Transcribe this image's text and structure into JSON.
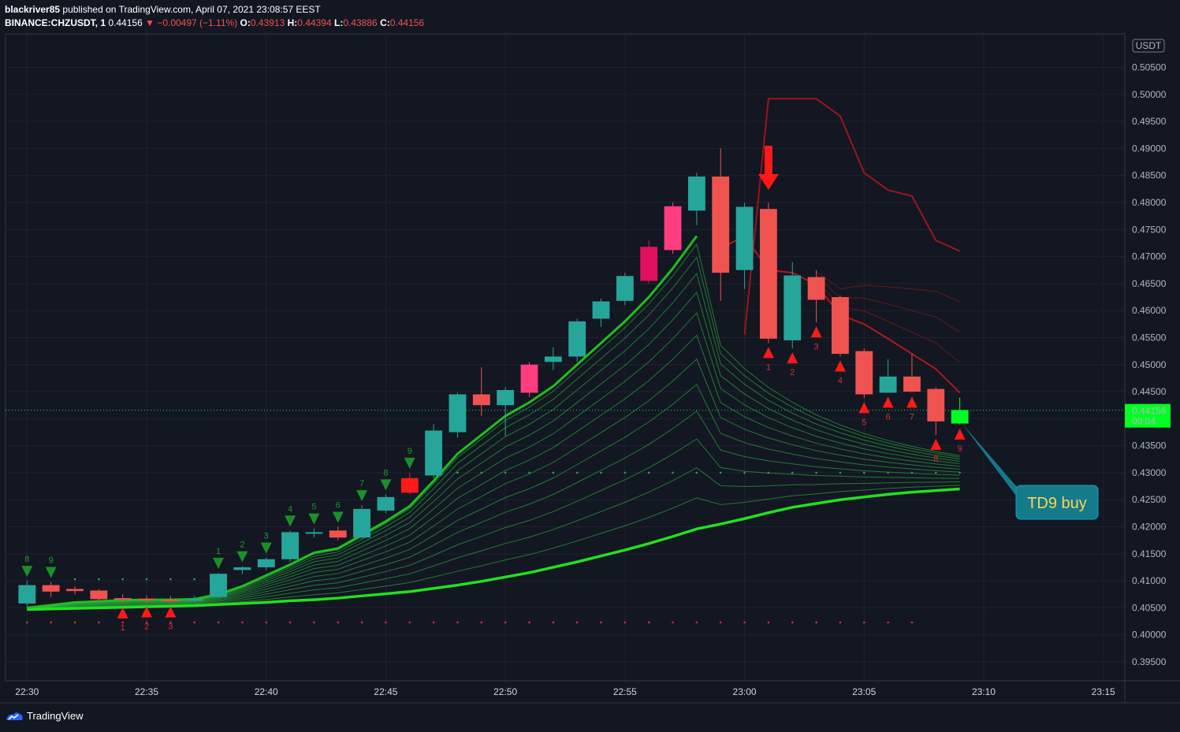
{
  "header": {
    "publisher": "blackriver85",
    "published_text": "published on TradingView.com, April 07, 2021 23:08:57 EEST",
    "symbol": "BINANCE:CHZUSDT, 1",
    "last": "0.44156",
    "change": "▼ −0.00497 (−1.11%)",
    "o_label": "O:",
    "o_value": "0.43913",
    "h_label": "H:",
    "h_value": "0.44394",
    "l_label": "L:",
    "l_value": "0.43886",
    "c_label": "C:",
    "c_value": "0.44156"
  },
  "footer": {
    "brand": "TradingView"
  },
  "chart_data": {
    "type": "candlestick",
    "title": "BINANCE:CHZUSDT, 1",
    "currency": "USDT",
    "y_ticks": [
      "0.50500",
      "0.50000",
      "0.49500",
      "0.49000",
      "0.48500",
      "0.48000",
      "0.47500",
      "0.47000",
      "0.46500",
      "0.46000",
      "0.45500",
      "0.45000",
      "0.44500",
      "0.44000",
      "0.43500",
      "0.43000",
      "0.42500",
      "0.42000",
      "0.41500",
      "0.41000",
      "0.40500",
      "0.40000",
      "0.39500"
    ],
    "x_ticks": [
      "22:30",
      "22:35",
      "22:40",
      "22:45",
      "22:50",
      "22:55",
      "23:00",
      "23:05",
      "23:10",
      "23:15"
    ],
    "ylim": [
      0.3915,
      0.5112
    ],
    "xlim": [
      -0.9,
      45.9
    ],
    "price_tag": {
      "value": "0.44156",
      "countdown": "00:04",
      "price": 0.44156
    },
    "annotation": {
      "text": "TD9 buy",
      "at_index": 38
    },
    "signal_arrow_index": 31,
    "candles": [
      {
        "i": 0,
        "o": 0.4058,
        "h": 0.41,
        "l": 0.405,
        "c": 0.4092
      },
      {
        "i": 1,
        "o": 0.4092,
        "h": 0.4098,
        "l": 0.407,
        "c": 0.408
      },
      {
        "i": 2,
        "o": 0.4085,
        "h": 0.409,
        "l": 0.4075,
        "c": 0.4081
      },
      {
        "i": 3,
        "o": 0.4082,
        "h": 0.4085,
        "l": 0.4062,
        "c": 0.4066
      },
      {
        "i": 4,
        "o": 0.4068,
        "h": 0.4075,
        "l": 0.4058,
        "c": 0.4066
      },
      {
        "i": 5,
        "o": 0.4067,
        "h": 0.4073,
        "l": 0.406,
        "c": 0.4065
      },
      {
        "i": 6,
        "o": 0.4065,
        "h": 0.4072,
        "l": 0.406,
        "c": 0.4062
      },
      {
        "i": 7,
        "o": 0.4063,
        "h": 0.4072,
        "l": 0.406,
        "c": 0.4066
      },
      {
        "i": 8,
        "o": 0.407,
        "h": 0.4115,
        "l": 0.4068,
        "c": 0.4113
      },
      {
        "i": 9,
        "o": 0.412,
        "h": 0.4127,
        "l": 0.4112,
        "c": 0.4125
      },
      {
        "i": 10,
        "o": 0.4125,
        "h": 0.4143,
        "l": 0.412,
        "c": 0.414
      },
      {
        "i": 11,
        "o": 0.414,
        "h": 0.4193,
        "l": 0.4135,
        "c": 0.419
      },
      {
        "i": 12,
        "o": 0.419,
        "h": 0.4197,
        "l": 0.418,
        "c": 0.419
      },
      {
        "i": 13,
        "o": 0.4193,
        "h": 0.42,
        "l": 0.4175,
        "c": 0.418
      },
      {
        "i": 14,
        "o": 0.418,
        "h": 0.424,
        "l": 0.4178,
        "c": 0.4233
      },
      {
        "i": 15,
        "o": 0.423,
        "h": 0.426,
        "l": 0.4225,
        "c": 0.4255
      },
      {
        "i": 16,
        "o": 0.429,
        "h": 0.43,
        "l": 0.426,
        "c": 0.4263
      },
      {
        "i": 17,
        "o": 0.4295,
        "h": 0.439,
        "l": 0.429,
        "c": 0.4378
      },
      {
        "i": 18,
        "o": 0.4375,
        "h": 0.4448,
        "l": 0.4365,
        "c": 0.4445
      },
      {
        "i": 19,
        "o": 0.4445,
        "h": 0.4495,
        "l": 0.4405,
        "c": 0.4425
      },
      {
        "i": 20,
        "o": 0.4425,
        "h": 0.4458,
        "l": 0.4368,
        "c": 0.4453
      },
      {
        "i": 21,
        "o": 0.4448,
        "h": 0.4505,
        "l": 0.444,
        "c": 0.45
      },
      {
        "i": 22,
        "o": 0.4505,
        "h": 0.4532,
        "l": 0.449,
        "c": 0.4515
      },
      {
        "i": 23,
        "o": 0.4515,
        "h": 0.4585,
        "l": 0.4505,
        "c": 0.458
      },
      {
        "i": 24,
        "o": 0.4585,
        "h": 0.4622,
        "l": 0.457,
        "c": 0.4617
      },
      {
        "i": 25,
        "o": 0.4618,
        "h": 0.467,
        "l": 0.461,
        "c": 0.4664
      },
      {
        "i": 26,
        "o": 0.4655,
        "h": 0.473,
        "l": 0.465,
        "c": 0.4718
      },
      {
        "i": 27,
        "o": 0.4712,
        "h": 0.48,
        "l": 0.4705,
        "c": 0.4793
      },
      {
        "i": 28,
        "o": 0.4785,
        "h": 0.4855,
        "l": 0.4758,
        "c": 0.4848
      },
      {
        "i": 29,
        "o": 0.4848,
        "h": 0.49,
        "l": 0.4618,
        "c": 0.467
      },
      {
        "i": 30,
        "o": 0.4675,
        "h": 0.48,
        "l": 0.464,
        "c": 0.4792
      },
      {
        "i": 31,
        "o": 0.4788,
        "h": 0.48,
        "l": 0.454,
        "c": 0.4548
      },
      {
        "i": 32,
        "o": 0.4545,
        "h": 0.469,
        "l": 0.453,
        "c": 0.4665
      },
      {
        "i": 33,
        "o": 0.4662,
        "h": 0.4675,
        "l": 0.4578,
        "c": 0.462
      },
      {
        "i": 34,
        "o": 0.4625,
        "h": 0.4628,
        "l": 0.4515,
        "c": 0.452
      },
      {
        "i": 35,
        "o": 0.4525,
        "h": 0.453,
        "l": 0.4438,
        "c": 0.4445
      },
      {
        "i": 36,
        "o": 0.4448,
        "h": 0.451,
        "l": 0.4448,
        "c": 0.4478
      },
      {
        "i": 37,
        "o": 0.4478,
        "h": 0.452,
        "l": 0.4448,
        "c": 0.445
      },
      {
        "i": 38,
        "o": 0.4455,
        "h": 0.4458,
        "l": 0.437,
        "c": 0.4395
      },
      {
        "i": 39,
        "o": 0.4391,
        "h": 0.4439,
        "l": 0.4389,
        "c": 0.4416
      }
    ],
    "td_sell_setup": [
      {
        "i": 0,
        "label": "8"
      },
      {
        "i": 1,
        "label": "9"
      },
      {
        "i": 8,
        "label": "1"
      },
      {
        "i": 9,
        "label": "2"
      },
      {
        "i": 10,
        "label": "3"
      },
      {
        "i": 11,
        "label": "4"
      },
      {
        "i": 12,
        "label": "5"
      },
      {
        "i": 13,
        "label": "6"
      },
      {
        "i": 14,
        "label": "7"
      },
      {
        "i": 15,
        "label": "8"
      },
      {
        "i": 16,
        "label": "9"
      }
    ],
    "td_buy_setup": [
      {
        "i": 4,
        "label": "1"
      },
      {
        "i": 5,
        "label": "2"
      },
      {
        "i": 6,
        "label": "3"
      },
      {
        "i": 31,
        "label": "1"
      },
      {
        "i": 32,
        "label": "2"
      },
      {
        "i": 33,
        "label": "3"
      },
      {
        "i": 34,
        "label": "4"
      },
      {
        "i": 35,
        "label": "5"
      },
      {
        "i": 36,
        "label": "6"
      },
      {
        "i": 37,
        "label": "7"
      },
      {
        "i": 38,
        "label": "8"
      },
      {
        "i": 39,
        "label": "9"
      }
    ],
    "resistance_dots": {
      "price": 0.4103,
      "from": 2,
      "to": 7
    },
    "resistance_dots_2": {
      "price": 0.43,
      "from": 17,
      "to": 39
    },
    "support_dots": {
      "price": 0.4023,
      "from": 0,
      "to": 37
    },
    "ribbon": {
      "fast_ma": [
        0.405,
        0.4055,
        0.406,
        0.4062,
        0.4064,
        0.4065,
        0.4065,
        0.4066,
        0.4075,
        0.409,
        0.411,
        0.413,
        0.4152,
        0.416,
        0.4185,
        0.421,
        0.4238,
        0.4285,
        0.4335,
        0.437,
        0.4405,
        0.443,
        0.446,
        0.45,
        0.454,
        0.458,
        0.4625,
        0.4678,
        0.4738,
        null,
        null,
        null,
        null,
        null,
        null,
        null,
        null,
        null,
        null,
        null
      ],
      "slow_ma": [
        0.4047,
        0.4048,
        0.4049,
        0.405,
        0.4051,
        0.4052,
        0.4053,
        0.4054,
        0.4056,
        0.4058,
        0.406,
        0.4063,
        0.4065,
        0.4068,
        0.4072,
        0.4076,
        0.408,
        0.4086,
        0.4092,
        0.4099,
        0.4107,
        0.4115,
        0.4125,
        0.4135,
        0.4146,
        0.4157,
        0.4169,
        0.4182,
        0.4196,
        0.4205,
        0.4215,
        0.4226,
        0.4236,
        0.4243,
        0.425,
        0.4255,
        0.426,
        0.4264,
        0.4267,
        0.427
      ],
      "thin_lines": 13,
      "red_ma": [
        null,
        null,
        null,
        null,
        null,
        null,
        null,
        null,
        null,
        null,
        null,
        null,
        null,
        null,
        null,
        null,
        null,
        null,
        null,
        null,
        null,
        null,
        null,
        null,
        null,
        null,
        null,
        null,
        null,
        0.4715,
        0.4738,
        0.4675,
        0.467,
        0.4648,
        0.4592,
        0.4575,
        0.4548,
        0.452,
        0.4492,
        0.4448
      ],
      "high_channel": [
        null,
        null,
        null,
        null,
        null,
        null,
        null,
        null,
        null,
        null,
        null,
        null,
        null,
        null,
        null,
        null,
        null,
        null,
        null,
        null,
        null,
        null,
        null,
        null,
        null,
        null,
        null,
        null,
        null,
        null,
        0.4555,
        0.4992,
        0.4992,
        0.4992,
        0.496,
        0.4855,
        0.4823,
        0.4812,
        0.473,
        0.471
      ]
    }
  }
}
